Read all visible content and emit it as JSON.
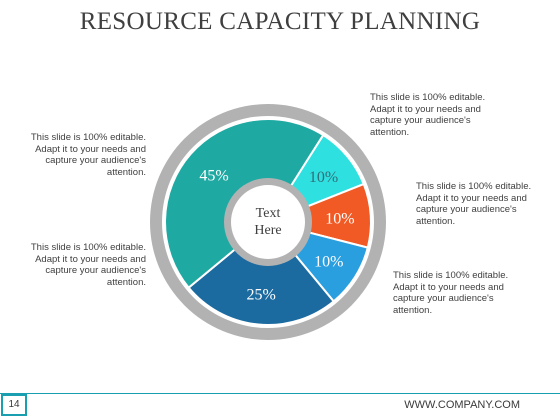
{
  "title": "RESOURCE CAPACITY PLANNING",
  "center_label_line1": "Text",
  "center_label_line2": "Here",
  "captions": [
    "This slide is 100% editable. Adapt it to your needs and capture your audience's attention.",
    "This slide is 100% editable. Adapt it to your needs and capture your audience's attention.",
    "This slide is 100% editable. Adapt it to your needs and capture your audience's attention.",
    "This slide is 100% editable. Adapt it to your needs and capture your audience's attention.",
    "This slide is 100% editable. Adapt it to your needs and capture your audience's attention."
  ],
  "footer": {
    "page": "14",
    "company": "WWW.COMPANY.COM"
  },
  "colors": {
    "teal": "#1fa9a3",
    "light_cyan": "#2fe0e0",
    "orange": "#f15a25",
    "blue": "#2a9fdf",
    "dark_blue": "#1b6aa0",
    "ring": "#b2b2b2"
  },
  "chart_data": {
    "type": "pie",
    "variant": "donut",
    "slices": [
      {
        "value": 10,
        "label": "10%",
        "color": "#2fe0e0"
      },
      {
        "value": 10,
        "label": "10%",
        "color": "#f15a25"
      },
      {
        "value": 10,
        "label": "10%",
        "color": "#2a9fdf"
      },
      {
        "value": 25,
        "label": "25%",
        "color": "#1b6aa0"
      },
      {
        "value": 45,
        "label": "45%",
        "color": "#1fa9a3"
      }
    ]
  }
}
